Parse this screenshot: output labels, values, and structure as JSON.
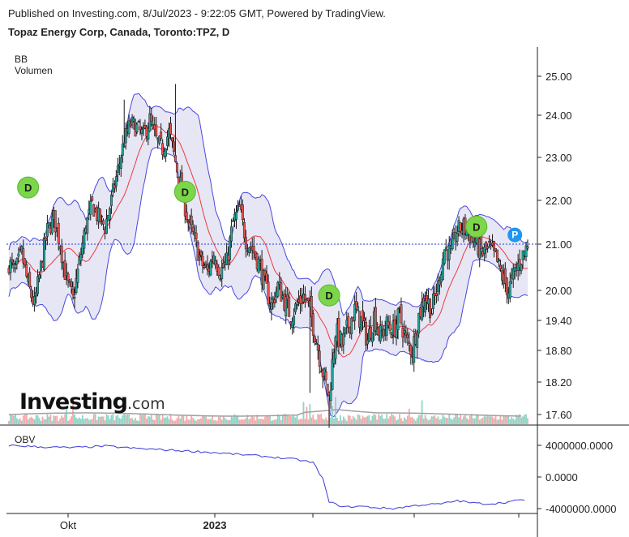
{
  "header": {
    "published": "Published on Investing.com, 8/Jul/2023 - 9:22:05 GMT, Powered by TradingView.",
    "title": "Topaz Energy Corp, Canada, Toronto:TPZ, D"
  },
  "indicators": {
    "bb": "BB",
    "volume": "Volumen",
    "obv": "OBV"
  },
  "logo": {
    "main": "Investing",
    "suffix": ".com"
  },
  "colors": {
    "up": "#26a69a",
    "down": "#ef5350",
    "band": "#4848e0",
    "band_fill": "#e6e6f5",
    "basis": "#f03a3a",
    "obv_line": "#3a3ad8",
    "vol_up": "#8fd4c6",
    "vol_down": "#f4a9a8",
    "vol_avg": "#a0a0a0",
    "dividend_marker": "#7cd64a",
    "p_marker": "#2196f3",
    "price_line": "#1c36d6"
  },
  "chart_data": {
    "type": "candlestick",
    "price_axis": {
      "ticks": [
        "25.00",
        "24.00",
        "23.00",
        "22.00",
        "21.00",
        "20.00",
        "19.40",
        "18.80",
        "18.20",
        "17.60"
      ],
      "last_price": 21.0
    },
    "obv_axis": {
      "ticks": [
        "4000000.0000",
        "0.0000",
        "-4000000.0000"
      ]
    },
    "x_labels": [
      "Okt",
      "2023"
    ],
    "price_path": [
      [
        0,
        20.6
      ],
      [
        4,
        20.4
      ],
      [
        8,
        20.8
      ],
      [
        12,
        20.1
      ],
      [
        16,
        19.7
      ],
      [
        20,
        20.5
      ],
      [
        24,
        21.3
      ],
      [
        28,
        21.6
      ],
      [
        32,
        21.0
      ],
      [
        36,
        20.2
      ],
      [
        40,
        19.8
      ],
      [
        44,
        20.6
      ],
      [
        48,
        21.4
      ],
      [
        52,
        21.9
      ],
      [
        56,
        21.6
      ],
      [
        60,
        21.4
      ],
      [
        64,
        22.0
      ],
      [
        68,
        22.7
      ],
      [
        72,
        23.4
      ],
      [
        76,
        23.8
      ],
      [
        80,
        23.7
      ],
      [
        84,
        23.5
      ],
      [
        88,
        23.9
      ],
      [
        92,
        23.4
      ],
      [
        96,
        23.2
      ],
      [
        100,
        23.6
      ],
      [
        104,
        22.9
      ],
      [
        108,
        22.2
      ],
      [
        112,
        21.5
      ],
      [
        116,
        21.1
      ],
      [
        120,
        20.6
      ],
      [
        124,
        20.4
      ],
      [
        128,
        20.8
      ],
      [
        132,
        20.4
      ],
      [
        136,
        20.6
      ],
      [
        140,
        21.5
      ],
      [
        144,
        21.8
      ],
      [
        148,
        21.1
      ],
      [
        152,
        20.9
      ],
      [
        156,
        20.6
      ],
      [
        160,
        20.1
      ],
      [
        164,
        19.7
      ],
      [
        168,
        20.1
      ],
      [
        172,
        19.8
      ],
      [
        176,
        19.5
      ],
      [
        180,
        19.7
      ],
      [
        184,
        19.9
      ],
      [
        188,
        19.6
      ],
      [
        192,
        19.0
      ],
      [
        196,
        18.4
      ],
      [
        200,
        17.9
      ],
      [
        204,
        19.2
      ],
      [
        208,
        18.9
      ],
      [
        212,
        19.3
      ],
      [
        216,
        19.6
      ],
      [
        220,
        19.4
      ],
      [
        224,
        19.0
      ],
      [
        228,
        19.5
      ],
      [
        232,
        19.1
      ],
      [
        236,
        19.3
      ],
      [
        240,
        19.2
      ],
      [
        244,
        19.5
      ],
      [
        248,
        19.0
      ],
      [
        252,
        18.8
      ],
      [
        256,
        19.5
      ],
      [
        260,
        19.9
      ],
      [
        264,
        19.6
      ],
      [
        268,
        20.1
      ],
      [
        272,
        20.9
      ],
      [
        276,
        20.8
      ],
      [
        280,
        21.3
      ],
      [
        284,
        21.4
      ],
      [
        288,
        21.2
      ],
      [
        292,
        21.0
      ],
      [
        296,
        20.8
      ],
      [
        300,
        20.9
      ],
      [
        304,
        20.7
      ],
      [
        308,
        20.3
      ],
      [
        312,
        20.0
      ],
      [
        316,
        20.4
      ],
      [
        320,
        20.7
      ],
      [
        324,
        21.0
      ]
    ],
    "dividend_markers": [
      {
        "label": "D",
        "index": 12,
        "price": 22.3
      },
      {
        "label": "D",
        "index": 110,
        "price": 22.2
      },
      {
        "label": "D",
        "index": 200,
        "price": 19.9
      },
      {
        "label": "D",
        "index": 292,
        "price": 21.4
      }
    ],
    "p_marker": {
      "label": "P",
      "index": 316,
      "price": 21.1
    },
    "obv": [
      [
        0,
        4000000
      ],
      [
        20,
        3800000
      ],
      [
        40,
        3700000
      ],
      [
        60,
        3900000
      ],
      [
        80,
        3600000
      ],
      [
        100,
        3400000
      ],
      [
        120,
        3200000
      ],
      [
        140,
        2900000
      ],
      [
        160,
        2600000
      ],
      [
        180,
        2200000
      ],
      [
        190,
        1800000
      ],
      [
        196,
        -200000
      ],
      [
        200,
        -3200000
      ],
      [
        210,
        -3800000
      ],
      [
        220,
        -3700000
      ],
      [
        230,
        -3900000
      ],
      [
        240,
        -4000000
      ],
      [
        250,
        -3700000
      ],
      [
        260,
        -3500000
      ],
      [
        270,
        -3400000
      ],
      [
        280,
        -3000000
      ],
      [
        290,
        -3300000
      ],
      [
        300,
        -3400000
      ],
      [
        310,
        -3200000
      ],
      [
        324,
        -2800000
      ]
    ]
  }
}
